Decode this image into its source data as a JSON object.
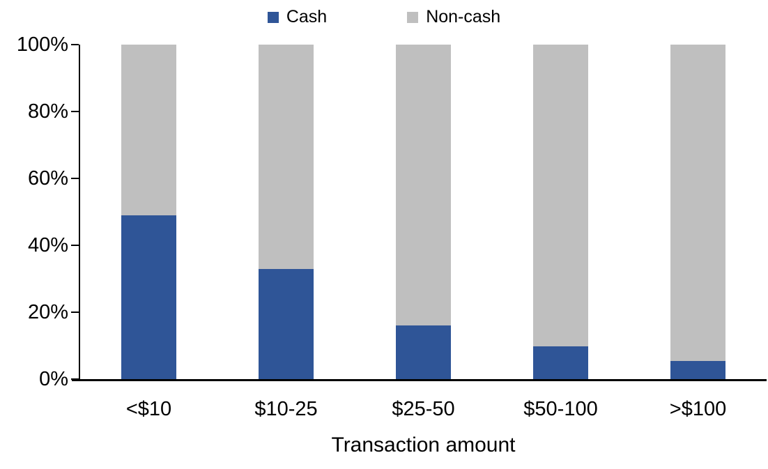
{
  "legend": {
    "items": [
      {
        "label": "Cash",
        "color": "#2F5597"
      },
      {
        "label": "Non-cash",
        "color": "#BFBFBF"
      }
    ]
  },
  "chart_data": {
    "type": "bar",
    "stacked": true,
    "percent_stacked": true,
    "title": "",
    "xlabel": "Transaction amount",
    "ylabel": "",
    "ylim": [
      0,
      100
    ],
    "ytick_labels": [
      "0%",
      "20%",
      "40%",
      "60%",
      "80%",
      "100%"
    ],
    "categories": [
      "<$10",
      "$10-25",
      "$25-50",
      "$50-100",
      ">$100"
    ],
    "series": [
      {
        "name": "Cash",
        "color": "#2F5597",
        "values": [
          49,
          33,
          16,
          9.7,
          5.5
        ]
      },
      {
        "name": "Non-cash",
        "color": "#BFBFBF",
        "values": [
          51,
          67,
          84,
          90.3,
          94.5
        ]
      }
    ],
    "legend_position": "top",
    "grid": false,
    "axis_color": "#000000"
  }
}
